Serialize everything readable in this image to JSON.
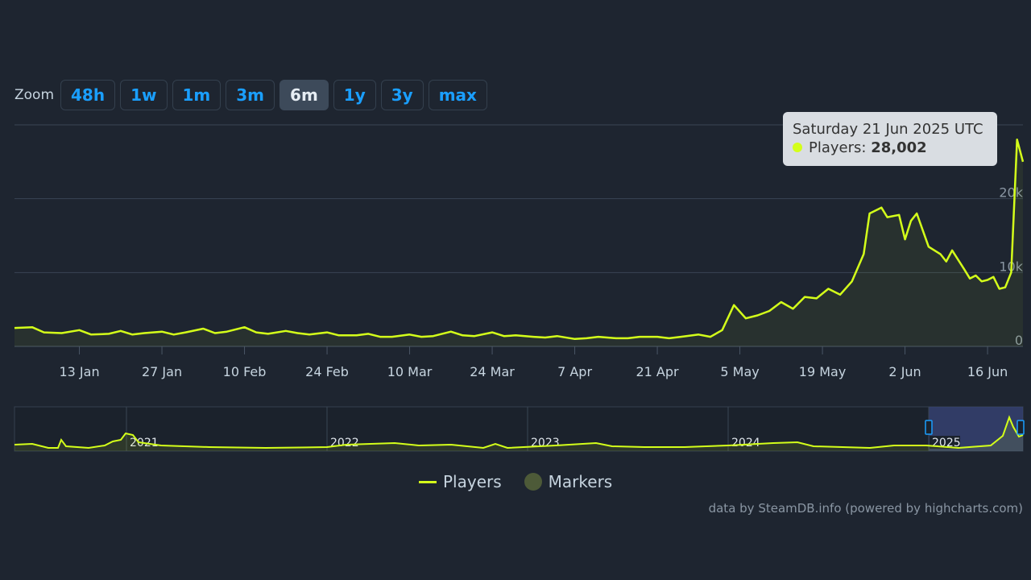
{
  "zoom": {
    "label": "Zoom",
    "buttons": [
      "48h",
      "1w",
      "1m",
      "3m",
      "6m",
      "1y",
      "3y",
      "max"
    ],
    "active": "6m"
  },
  "colors": {
    "series": "#d4ff1a",
    "markers": "#4d5a38",
    "background": "#1e2530",
    "accent": "#1a9fff"
  },
  "tooltip": {
    "date": "Saturday 21 Jun 2025 UTC",
    "series_label": "Players:",
    "value": "28,002"
  },
  "legend": [
    {
      "name": "Players",
      "symbol": "line"
    },
    {
      "name": "Markers",
      "symbol": "circle"
    }
  ],
  "credits": "data by SteamDB.info (powered by highcharts.com)",
  "navigator": {
    "years": [
      "2021",
      "2022",
      "2023",
      "2024",
      "2025"
    ]
  },
  "chart_data": {
    "type": "line",
    "x_ticks": [
      "13 Jan",
      "27 Jan",
      "10 Feb",
      "24 Feb",
      "10 Mar",
      "24 Mar",
      "7 Apr",
      "21 Apr",
      "5 May",
      "19 May",
      "2 Jun",
      "16 Jun"
    ],
    "y_ticks": [
      "0",
      "10k",
      "20k"
    ],
    "ylim": [
      0,
      30000
    ],
    "x_range": [
      "2025-01-02",
      "2025-06-22"
    ],
    "grid": true,
    "legend_position": "bottom-center",
    "series": [
      {
        "name": "Players",
        "points": [
          [
            "2025-01-02",
            2500
          ],
          [
            "2025-01-05",
            2600
          ],
          [
            "2025-01-07",
            1900
          ],
          [
            "2025-01-10",
            1800
          ],
          [
            "2025-01-13",
            2200
          ],
          [
            "2025-01-15",
            1600
          ],
          [
            "2025-01-18",
            1700
          ],
          [
            "2025-01-20",
            2100
          ],
          [
            "2025-01-22",
            1600
          ],
          [
            "2025-01-24",
            1800
          ],
          [
            "2025-01-27",
            2000
          ],
          [
            "2025-01-29",
            1600
          ],
          [
            "2025-01-31",
            1900
          ],
          [
            "2025-02-03",
            2400
          ],
          [
            "2025-02-05",
            1800
          ],
          [
            "2025-02-07",
            2000
          ],
          [
            "2025-02-10",
            2600
          ],
          [
            "2025-02-12",
            1900
          ],
          [
            "2025-02-14",
            1700
          ],
          [
            "2025-02-17",
            2100
          ],
          [
            "2025-02-19",
            1800
          ],
          [
            "2025-02-21",
            1600
          ],
          [
            "2025-02-24",
            1900
          ],
          [
            "2025-02-26",
            1500
          ],
          [
            "2025-03-01",
            1500
          ],
          [
            "2025-03-03",
            1700
          ],
          [
            "2025-03-05",
            1300
          ],
          [
            "2025-03-07",
            1300
          ],
          [
            "2025-03-10",
            1600
          ],
          [
            "2025-03-12",
            1300
          ],
          [
            "2025-03-14",
            1400
          ],
          [
            "2025-03-17",
            2000
          ],
          [
            "2025-03-19",
            1500
          ],
          [
            "2025-03-21",
            1400
          ],
          [
            "2025-03-24",
            1900
          ],
          [
            "2025-03-26",
            1400
          ],
          [
            "2025-03-28",
            1500
          ],
          [
            "2025-03-31",
            1300
          ],
          [
            "2025-04-02",
            1200
          ],
          [
            "2025-04-04",
            1400
          ],
          [
            "2025-04-07",
            1000
          ],
          [
            "2025-04-09",
            1100
          ],
          [
            "2025-04-11",
            1300
          ],
          [
            "2025-04-14",
            1100
          ],
          [
            "2025-04-16",
            1100
          ],
          [
            "2025-04-18",
            1300
          ],
          [
            "2025-04-21",
            1300
          ],
          [
            "2025-04-23",
            1100
          ],
          [
            "2025-04-25",
            1300
          ],
          [
            "2025-04-28",
            1600
          ],
          [
            "2025-04-30",
            1300
          ],
          [
            "2025-05-02",
            2200
          ],
          [
            "2025-05-04",
            5600
          ],
          [
            "2025-05-06",
            3800
          ],
          [
            "2025-05-08",
            4200
          ],
          [
            "2025-05-10",
            4800
          ],
          [
            "2025-05-12",
            6000
          ],
          [
            "2025-05-14",
            5100
          ],
          [
            "2025-05-16",
            6700
          ],
          [
            "2025-05-18",
            6500
          ],
          [
            "2025-05-20",
            7800
          ],
          [
            "2025-05-22",
            7000
          ],
          [
            "2025-05-24",
            8800
          ],
          [
            "2025-05-26",
            12500
          ],
          [
            "2025-05-27",
            18000
          ],
          [
            "2025-05-29",
            18800
          ],
          [
            "2025-05-30",
            17500
          ],
          [
            "2025-06-01",
            17800
          ],
          [
            "2025-06-02",
            14500
          ],
          [
            "2025-06-03",
            17000
          ],
          [
            "2025-06-04",
            18000
          ],
          [
            "2025-06-06",
            13500
          ],
          [
            "2025-06-08",
            12500
          ],
          [
            "2025-06-09",
            11500
          ],
          [
            "2025-06-10",
            13000
          ],
          [
            "2025-06-12",
            10500
          ],
          [
            "2025-06-13",
            9200
          ],
          [
            "2025-06-14",
            9600
          ],
          [
            "2025-06-15",
            8800
          ],
          [
            "2025-06-16",
            9000
          ],
          [
            "2025-06-17",
            9400
          ],
          [
            "2025-06-18",
            7800
          ],
          [
            "2025-06-19",
            8000
          ],
          [
            "2025-06-20",
            10000
          ],
          [
            "2025-06-21",
            28002
          ],
          [
            "2025-06-22",
            25000
          ]
        ]
      }
    ]
  }
}
